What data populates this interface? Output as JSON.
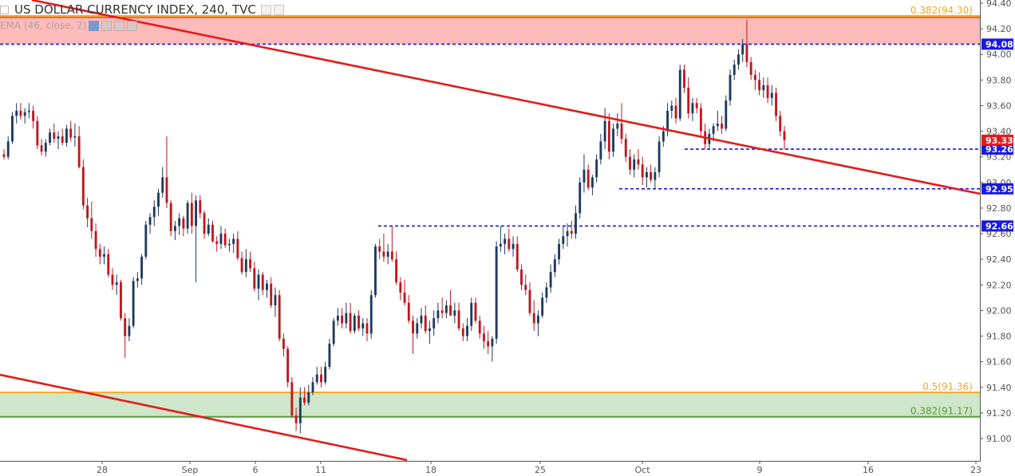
{
  "header": {
    "symbol": "US DOLLAR CURRENCY INDEX, 240, TVC",
    "indicator": "EMA (46, close, 2)"
  },
  "colors": {
    "up": "#1e3a5f",
    "down": "#c0171f",
    "trendline": "#e31b1b",
    "support_line": "#1a1adf",
    "fib_upper": "#f5a623",
    "fib_lower": "#5a9a3a",
    "zone_red": "#ffb3b3",
    "zone_green": "#c9e3c3",
    "price_tag_current": "#e31b1b",
    "price_tag_level": "#1a1adf"
  },
  "chart_data": {
    "type": "candlestick",
    "title": "US DOLLAR CURRENCY INDEX, 240, TVC",
    "ylim": [
      90.84,
      94.4
    ],
    "y_ticks": [
      "94.40",
      "94.20",
      "94.00",
      "93.80",
      "93.60",
      "93.40",
      "93.20",
      "93.00",
      "92.80",
      "92.60",
      "92.40",
      "92.20",
      "92.00",
      "91.80",
      "91.60",
      "91.40",
      "91.20",
      "91.00"
    ],
    "x_ticks": [
      "28",
      "Sep",
      "6",
      "11",
      "18",
      "25",
      "Oct",
      "9",
      "16",
      "23"
    ],
    "last_price": "93.33",
    "levels": [
      {
        "label": "94.08",
        "value": 94.08,
        "style": "dashed-blue"
      },
      {
        "label": "93.26",
        "value": 93.26,
        "style": "dashed-blue"
      },
      {
        "label": "92.95",
        "value": 92.95,
        "style": "dashed-blue"
      },
      {
        "label": "92.66",
        "value": 92.66,
        "style": "dashed-blue"
      }
    ],
    "fib_annotations": [
      {
        "label": "0.382(94.30)",
        "value": 94.3
      },
      {
        "label": "0.5(91.36)",
        "value": 91.36
      },
      {
        "label": "0.382(91.17)",
        "value": 91.17
      }
    ],
    "zones": [
      {
        "from": 94.08,
        "to": 94.3,
        "color": "red"
      },
      {
        "from": 91.17,
        "to": 91.36,
        "color": "green"
      }
    ],
    "candles": [
      [
        93.22,
        93.26,
        93.18,
        93.2
      ],
      [
        93.2,
        93.36,
        93.18,
        93.32
      ],
      [
        93.32,
        93.55,
        93.3,
        93.52
      ],
      [
        93.52,
        93.62,
        93.46,
        93.56
      ],
      [
        93.56,
        93.62,
        93.49,
        93.52
      ],
      [
        93.52,
        93.58,
        93.46,
        93.55
      ],
      [
        93.55,
        93.62,
        93.5,
        93.56
      ],
      [
        93.56,
        93.6,
        93.42,
        93.48
      ],
      [
        93.48,
        93.52,
        93.26,
        93.29
      ],
      [
        93.29,
        93.34,
        93.21,
        93.24
      ],
      [
        93.24,
        93.34,
        93.2,
        93.31
      ],
      [
        93.31,
        93.42,
        93.29,
        93.39
      ],
      [
        93.39,
        93.46,
        93.31,
        93.34
      ],
      [
        93.34,
        93.4,
        93.26,
        93.36
      ],
      [
        93.36,
        93.42,
        93.29,
        93.31
      ],
      [
        93.31,
        93.45,
        93.28,
        93.42
      ],
      [
        93.42,
        93.48,
        93.32,
        93.35
      ],
      [
        93.35,
        93.46,
        93.28,
        93.36
      ],
      [
        93.36,
        93.44,
        93.11,
        93.12
      ],
      [
        93.12,
        93.18,
        92.79,
        92.82
      ],
      [
        92.82,
        92.88,
        92.65,
        92.72
      ],
      [
        92.72,
        92.85,
        92.56,
        92.62
      ],
      [
        92.62,
        92.68,
        92.42,
        92.48
      ],
      [
        92.48,
        92.52,
        92.36,
        92.42
      ],
      [
        92.42,
        92.5,
        92.36,
        92.44
      ],
      [
        92.44,
        92.48,
        92.26,
        92.28
      ],
      [
        92.28,
        92.33,
        92.16,
        92.2
      ],
      [
        92.2,
        92.28,
        92.12,
        92.22
      ],
      [
        92.22,
        92.24,
        91.92,
        91.94
      ],
      [
        91.94,
        91.98,
        91.63,
        91.8
      ],
      [
        91.8,
        91.94,
        91.76,
        91.88
      ],
      [
        91.88,
        92.26,
        91.86,
        92.23
      ],
      [
        92.23,
        92.3,
        92.18,
        92.25
      ],
      [
        92.25,
        92.44,
        92.2,
        92.42
      ],
      [
        92.42,
        92.7,
        92.4,
        92.67
      ],
      [
        92.67,
        92.76,
        92.6,
        92.73
      ],
      [
        92.73,
        92.86,
        92.66,
        92.81
      ],
      [
        92.81,
        92.95,
        92.74,
        92.92
      ],
      [
        92.92,
        93.12,
        92.88,
        93.04
      ],
      [
        93.04,
        93.36,
        92.8,
        92.84
      ],
      [
        92.84,
        92.86,
        92.58,
        92.62
      ],
      [
        92.62,
        92.7,
        92.55,
        92.66
      ],
      [
        92.66,
        92.76,
        92.59,
        92.72
      ],
      [
        92.72,
        92.74,
        92.58,
        92.64
      ],
      [
        92.64,
        92.86,
        92.6,
        92.84
      ],
      [
        92.84,
        92.92,
        92.6,
        92.66
      ],
      [
        92.66,
        92.9,
        92.22,
        92.86
      ],
      [
        92.86,
        92.9,
        92.72,
        92.76
      ],
      [
        92.76,
        92.78,
        92.56,
        92.6
      ],
      [
        92.6,
        92.72,
        92.58,
        92.67
      ],
      [
        92.67,
        92.7,
        92.53,
        92.54
      ],
      [
        92.54,
        92.58,
        92.46,
        92.52
      ],
      [
        92.52,
        92.66,
        92.48,
        92.6
      ],
      [
        92.6,
        92.64,
        92.49,
        92.51
      ],
      [
        92.51,
        92.56,
        92.46,
        92.52
      ],
      [
        92.52,
        92.6,
        92.45,
        92.56
      ],
      [
        92.56,
        92.62,
        92.39,
        92.41
      ],
      [
        92.41,
        92.46,
        92.28,
        92.3
      ],
      [
        92.3,
        92.48,
        92.26,
        92.4
      ],
      [
        92.4,
        92.46,
        92.3,
        92.33
      ],
      [
        92.33,
        92.38,
        92.15,
        92.17
      ],
      [
        92.17,
        92.32,
        92.08,
        92.28
      ],
      [
        92.28,
        92.3,
        92.12,
        92.16
      ],
      [
        92.16,
        92.24,
        92.1,
        92.21
      ],
      [
        92.21,
        92.26,
        92.02,
        92.04
      ],
      [
        92.04,
        92.18,
        91.95,
        92.12
      ],
      [
        92.12,
        92.16,
        91.76,
        91.78
      ],
      [
        91.78,
        91.82,
        91.64,
        91.7
      ],
      [
        91.7,
        91.72,
        91.4,
        91.44
      ],
      [
        91.44,
        91.48,
        91.16,
        91.18
      ],
      [
        91.18,
        91.24,
        91.06,
        91.12
      ],
      [
        91.12,
        91.4,
        91.04,
        91.32
      ],
      [
        91.32,
        91.4,
        91.26,
        91.28
      ],
      [
        91.28,
        91.42,
        91.26,
        91.36
      ],
      [
        91.36,
        91.48,
        91.34,
        91.44
      ],
      [
        91.44,
        91.56,
        91.42,
        91.5
      ],
      [
        91.5,
        91.56,
        91.4,
        91.44
      ],
      [
        91.44,
        91.6,
        91.42,
        91.56
      ],
      [
        91.56,
        91.78,
        91.54,
        91.74
      ],
      [
        91.74,
        91.94,
        91.72,
        91.92
      ],
      [
        91.92,
        92.02,
        91.88,
        91.96
      ],
      [
        91.96,
        92.02,
        91.86,
        91.9
      ],
      [
        91.9,
        92.06,
        91.86,
        91.98
      ],
      [
        91.98,
        92.06,
        91.82,
        91.84
      ],
      [
        91.84,
        91.98,
        91.82,
        91.96
      ],
      [
        91.96,
        92.0,
        91.84,
        91.86
      ],
      [
        91.86,
        91.94,
        91.8,
        91.9
      ],
      [
        91.9,
        91.94,
        91.76,
        91.82
      ],
      [
        91.82,
        92.16,
        91.78,
        92.12
      ],
      [
        92.12,
        92.52,
        92.1,
        92.5
      ],
      [
        92.5,
        92.56,
        92.4,
        92.46
      ],
      [
        92.46,
        92.6,
        92.38,
        92.42
      ],
      [
        92.42,
        92.52,
        92.36,
        92.46
      ],
      [
        92.46,
        92.66,
        92.38,
        92.4
      ],
      [
        92.4,
        92.46,
        92.2,
        92.22
      ],
      [
        92.22,
        92.26,
        92.08,
        92.14
      ],
      [
        92.14,
        92.24,
        92.04,
        92.06
      ],
      [
        92.06,
        92.12,
        91.9,
        91.92
      ],
      [
        91.92,
        91.96,
        91.66,
        91.82
      ],
      [
        91.82,
        91.94,
        91.78,
        91.9
      ],
      [
        91.9,
        92.02,
        91.86,
        91.96
      ],
      [
        91.96,
        92.04,
        91.82,
        91.84
      ],
      [
        91.84,
        91.92,
        91.74,
        91.86
      ],
      [
        91.86,
        92.0,
        91.8,
        91.94
      ],
      [
        91.94,
        92.06,
        91.9,
        92.0
      ],
      [
        92.0,
        92.1,
        91.94,
        91.98
      ],
      [
        91.98,
        92.08,
        91.94,
        92.04
      ],
      [
        92.04,
        92.16,
        91.98,
        91.96
      ],
      [
        91.96,
        92.06,
        91.9,
        92.0
      ],
      [
        92.0,
        92.06,
        91.84,
        91.86
      ],
      [
        91.86,
        91.9,
        91.76,
        91.8
      ],
      [
        91.8,
        91.94,
        91.76,
        91.88
      ],
      [
        91.88,
        92.1,
        91.84,
        92.06
      ],
      [
        92.06,
        92.1,
        91.9,
        91.92
      ],
      [
        91.92,
        91.96,
        91.78,
        91.82
      ],
      [
        91.82,
        91.88,
        91.7,
        91.76
      ],
      [
        91.76,
        91.84,
        91.66,
        91.72
      ],
      [
        91.72,
        91.8,
        91.6,
        91.78
      ],
      [
        91.78,
        92.54,
        91.74,
        92.5
      ],
      [
        92.5,
        92.66,
        92.46,
        92.52
      ],
      [
        92.52,
        92.6,
        92.44,
        92.56
      ],
      [
        92.56,
        92.64,
        92.46,
        92.48
      ],
      [
        92.48,
        92.58,
        92.42,
        92.52
      ],
      [
        92.52,
        92.58,
        92.3,
        92.32
      ],
      [
        92.32,
        92.36,
        92.16,
        92.2
      ],
      [
        92.2,
        92.28,
        92.12,
        92.16
      ],
      [
        92.16,
        92.22,
        91.96,
        91.98
      ],
      [
        91.98,
        92.08,
        91.84,
        91.9
      ],
      [
        91.9,
        92.0,
        91.8,
        91.96
      ],
      [
        91.96,
        92.14,
        91.94,
        92.1
      ],
      [
        92.1,
        92.22,
        92.06,
        92.18
      ],
      [
        92.18,
        92.36,
        92.14,
        92.3
      ],
      [
        92.3,
        92.44,
        92.26,
        92.4
      ],
      [
        92.4,
        92.56,
        92.36,
        92.52
      ],
      [
        92.52,
        92.66,
        92.48,
        92.58
      ],
      [
        92.58,
        92.68,
        92.5,
        92.62
      ],
      [
        92.62,
        92.7,
        92.56,
        92.6
      ],
      [
        92.6,
        92.82,
        92.56,
        92.76
      ],
      [
        92.76,
        93.04,
        92.72,
        93.0
      ],
      [
        93.0,
        93.22,
        92.92,
        93.1
      ],
      [
        93.1,
        93.14,
        92.94,
        92.96
      ],
      [
        92.96,
        93.06,
        92.9,
        93.04
      ],
      [
        93.04,
        93.22,
        93.0,
        93.18
      ],
      [
        93.18,
        93.38,
        93.14,
        93.32
      ],
      [
        93.32,
        93.58,
        93.26,
        93.48
      ],
      [
        93.48,
        93.54,
        93.18,
        93.24
      ],
      [
        93.24,
        93.46,
        93.2,
        93.42
      ],
      [
        93.42,
        93.54,
        93.36,
        93.46
      ],
      [
        93.46,
        93.62,
        93.3,
        93.34
      ],
      [
        93.34,
        93.38,
        93.16,
        93.2
      ],
      [
        93.2,
        93.26,
        93.06,
        93.1
      ],
      [
        93.1,
        93.22,
        93.04,
        93.18
      ],
      [
        93.18,
        93.26,
        93.1,
        93.14
      ],
      [
        93.14,
        93.2,
        92.98,
        93.04
      ],
      [
        93.04,
        93.12,
        92.96,
        93.08
      ],
      [
        93.08,
        93.14,
        93.0,
        93.02
      ],
      [
        93.02,
        93.12,
        92.95,
        93.08
      ],
      [
        93.08,
        93.36,
        93.04,
        93.32
      ],
      [
        93.32,
        93.44,
        93.28,
        93.4
      ],
      [
        93.4,
        93.62,
        93.36,
        93.56
      ],
      [
        93.56,
        93.64,
        93.5,
        93.6
      ],
      [
        93.6,
        93.66,
        93.46,
        93.5
      ],
      [
        93.5,
        93.92,
        93.48,
        93.88
      ],
      [
        93.88,
        93.92,
        93.7,
        93.74
      ],
      [
        93.74,
        93.82,
        93.5,
        93.54
      ],
      [
        93.54,
        93.66,
        93.48,
        93.62
      ],
      [
        93.62,
        93.66,
        93.54,
        93.58
      ],
      [
        93.58,
        93.62,
        93.36,
        93.4
      ],
      [
        93.4,
        93.46,
        93.26,
        93.3
      ],
      [
        93.3,
        93.42,
        93.26,
        93.38
      ],
      [
        93.38,
        93.46,
        93.32,
        93.44
      ],
      [
        93.44,
        93.56,
        93.4,
        93.46
      ],
      [
        93.46,
        93.52,
        93.38,
        93.42
      ],
      [
        93.42,
        93.68,
        93.4,
        93.64
      ],
      [
        93.64,
        93.88,
        93.6,
        93.84
      ],
      [
        93.84,
        93.96,
        93.8,
        93.92
      ],
      [
        93.92,
        94.04,
        93.88,
        94.0
      ],
      [
        94.0,
        94.12,
        93.94,
        94.08
      ],
      [
        94.08,
        94.27,
        93.9,
        93.94
      ],
      [
        93.94,
        93.98,
        93.8,
        93.84
      ],
      [
        93.84,
        93.88,
        93.72,
        93.8
      ],
      [
        93.8,
        93.86,
        93.68,
        93.72
      ],
      [
        93.72,
        93.82,
        93.66,
        93.76
      ],
      [
        93.76,
        93.82,
        93.62,
        93.66
      ],
      [
        93.66,
        93.76,
        93.6,
        93.7
      ],
      [
        93.7,
        93.74,
        93.48,
        93.52
      ],
      [
        93.52,
        93.56,
        93.36,
        93.4
      ],
      [
        93.4,
        93.44,
        93.26,
        93.33
      ]
    ]
  }
}
